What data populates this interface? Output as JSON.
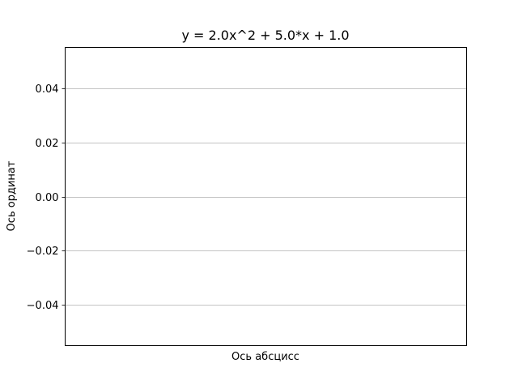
{
  "chart_data": {
    "type": "line",
    "title": "y = 2.0x^2 + 5.0*x + 1.0",
    "xlabel": "Ось абсцисс",
    "ylabel": "Ось ординат",
    "ylim": [
      -0.055,
      0.055
    ],
    "y_ticks": [
      -0.04,
      -0.02,
      0.0,
      0.02,
      0.04
    ],
    "y_tick_labels": [
      "−0.04",
      "−0.02",
      "0.00",
      "0.02",
      "0.04"
    ],
    "x_ticks": [],
    "grid": "horizontal",
    "series": []
  },
  "colors": {
    "grid": "#b0b0b0",
    "axes": "#000000",
    "background": "#ffffff"
  }
}
